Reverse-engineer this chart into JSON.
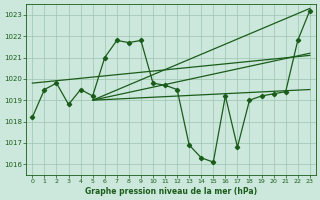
{
  "title": "Graphe pression niveau de la mer (hPa)",
  "bg_color": "#cce8dc",
  "grid_color": "#9dc4b0",
  "line_color": "#1a5c1a",
  "xlim": [
    -0.5,
    23.5
  ],
  "ylim": [
    1015.5,
    1023.5
  ],
  "yticks": [
    1016,
    1017,
    1018,
    1019,
    1020,
    1021,
    1022,
    1023
  ],
  "xticks": [
    0,
    1,
    2,
    3,
    4,
    5,
    6,
    7,
    8,
    9,
    10,
    11,
    12,
    13,
    14,
    15,
    16,
    17,
    18,
    19,
    20,
    21,
    22,
    23
  ],
  "pressure": [
    1018.2,
    1019.5,
    1019.8,
    1018.8,
    1019.5,
    1019.2,
    1021.0,
    1021.8,
    1021.7,
    1021.8,
    1019.8,
    1019.7,
    1019.5,
    1016.9,
    1016.3,
    1016.1,
    1019.2,
    1016.8,
    1019.0,
    1019.2,
    1019.3,
    1019.4,
    1021.8,
    1023.2
  ],
  "line1_x": [
    5,
    23
  ],
  "line1_y": [
    1019.0,
    1023.2
  ],
  "line2_x": [
    5,
    23
  ],
  "line2_y": [
    1019.0,
    1021.5
  ],
  "line3_x": [
    5,
    20
  ],
  "line3_y": [
    1019.0,
    1019.4
  ],
  "line4_x": [
    0,
    23
  ],
  "line4_y": [
    1019.5,
    1021.0
  ]
}
